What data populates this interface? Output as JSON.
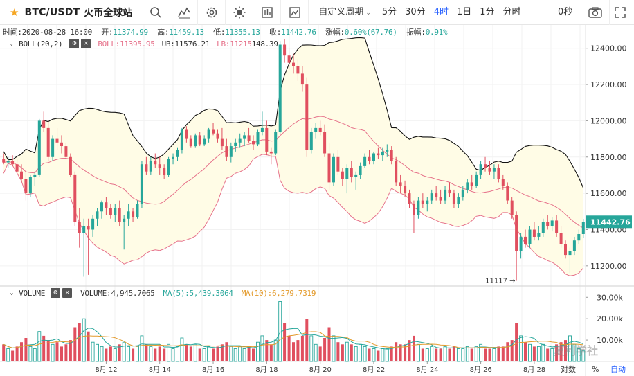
{
  "toolbar": {
    "symbol": "BTC/USDT",
    "exchange": "火币全球站",
    "icons": [
      "search-icon",
      "indicator-icon",
      "settings-icon",
      "theme-icon",
      "template-icon",
      "compare-icon"
    ],
    "custom_period": "自定义周期",
    "periods": [
      {
        "label": "5分",
        "active": false
      },
      {
        "label": "30分",
        "active": false
      },
      {
        "label": "4时",
        "active": true
      },
      {
        "label": "1日",
        "active": false
      },
      {
        "label": "1分",
        "active": false
      },
      {
        "label": "分时",
        "active": false
      }
    ],
    "countdown": "0秒"
  },
  "ohlc": {
    "time_label": "时间:",
    "time": "2020-08-28 16:00",
    "open_label": "开:",
    "open": "11374.99",
    "high_label": "高:",
    "high": "11459.13",
    "low_label": "低:",
    "low": "11355.13",
    "close_label": "收:",
    "close": "11442.76",
    "change_label": "涨幅:",
    "change": "0.60%(67.76)",
    "amp_label": "振幅:",
    "amp": "0.91%"
  },
  "boll": {
    "name": "BOLL(20,2)",
    "mid_label": "BOLL:11395.95",
    "ub_label": "UB:11576.21",
    "lb_label": "LB:11215",
    "lb_overlap": "148.39"
  },
  "volume": {
    "name": "VOLUME",
    "vol_label": "VOLUME:4,945.7065",
    "ma5_label": "MA(5):5,439.3064",
    "ma10_label": "MA(10):6,279.7319"
  },
  "price_axis": {
    "ticks": [
      "12400.00",
      "12200.00",
      "12000.00",
      "11800.00",
      "11600.00",
      "11400.00",
      "11200.00"
    ],
    "current": "11442.76",
    "min_annotation": "11117"
  },
  "volume_axis": {
    "ticks": [
      "30.00k",
      "20.00k",
      "10.00k"
    ]
  },
  "time_axis": {
    "ticks": [
      "8月 12",
      "8月 14",
      "8月 16",
      "8月 18",
      "8月 20",
      "8月 22",
      "8月 24",
      "8月 26",
      "8月 28"
    ]
  },
  "bottom": {
    "percent": "%",
    "log": "对数",
    "auto": "自动"
  },
  "watermark": "复利学社",
  "colors": {
    "up": "#26a69a",
    "down": "#e04f5f",
    "ub": "#111111",
    "mid": "#e6718a",
    "band_fill": "#fffce6",
    "active": "#2962ff"
  },
  "chart_data": {
    "type": "candlestick",
    "interval": "4h",
    "price_range": [
      11100,
      12460
    ],
    "volume_range": [
      0,
      33000
    ],
    "candles": [
      {
        "o": 11790,
        "h": 11820,
        "l": 11760,
        "c": 11770,
        "v": 8000
      },
      {
        "o": 11770,
        "h": 11800,
        "l": 11740,
        "c": 11780,
        "v": 6000
      },
      {
        "o": 11780,
        "h": 11810,
        "l": 11750,
        "c": 11760,
        "v": 5000
      },
      {
        "o": 11760,
        "h": 11790,
        "l": 11700,
        "c": 11720,
        "v": 7000
      },
      {
        "o": 11720,
        "h": 11760,
        "l": 11660,
        "c": 11680,
        "v": 9000
      },
      {
        "o": 11680,
        "h": 11720,
        "l": 11560,
        "c": 11600,
        "v": 11000
      },
      {
        "o": 11600,
        "h": 11700,
        "l": 11580,
        "c": 11690,
        "v": 7000
      },
      {
        "o": 11690,
        "h": 11720,
        "l": 11640,
        "c": 11700,
        "v": 6000
      },
      {
        "o": 11700,
        "h": 12010,
        "l": 11690,
        "c": 12000,
        "v": 14000
      },
      {
        "o": 12000,
        "h": 12050,
        "l": 11940,
        "c": 11960,
        "v": 12000
      },
      {
        "o": 11960,
        "h": 12000,
        "l": 11780,
        "c": 11800,
        "v": 10000
      },
      {
        "o": 11800,
        "h": 11920,
        "l": 11780,
        "c": 11900,
        "v": 8000
      },
      {
        "o": 11900,
        "h": 11960,
        "l": 11840,
        "c": 11880,
        "v": 9000
      },
      {
        "o": 11880,
        "h": 11920,
        "l": 11820,
        "c": 11860,
        "v": 7000
      },
      {
        "o": 11860,
        "h": 11880,
        "l": 11790,
        "c": 11800,
        "v": 8000
      },
      {
        "o": 11800,
        "h": 11820,
        "l": 11690,
        "c": 11700,
        "v": 10000
      },
      {
        "o": 11700,
        "h": 11720,
        "l": 11420,
        "c": 11440,
        "v": 16000
      },
      {
        "o": 11440,
        "h": 11520,
        "l": 11300,
        "c": 11380,
        "v": 18000
      },
      {
        "o": 11380,
        "h": 11460,
        "l": 11140,
        "c": 11420,
        "v": 20000
      },
      {
        "o": 11420,
        "h": 11460,
        "l": 11150,
        "c": 11400,
        "v": 14000
      },
      {
        "o": 11400,
        "h": 11480,
        "l": 11360,
        "c": 11460,
        "v": 9000
      },
      {
        "o": 11460,
        "h": 11520,
        "l": 11420,
        "c": 11500,
        "v": 8000
      },
      {
        "o": 11500,
        "h": 11560,
        "l": 11460,
        "c": 11550,
        "v": 7000
      },
      {
        "o": 11550,
        "h": 11580,
        "l": 11480,
        "c": 11520,
        "v": 6000
      },
      {
        "o": 11520,
        "h": 11540,
        "l": 11460,
        "c": 11480,
        "v": 7000
      },
      {
        "o": 11480,
        "h": 11540,
        "l": 11440,
        "c": 11520,
        "v": 6000
      },
      {
        "o": 11520,
        "h": 11560,
        "l": 11420,
        "c": 11440,
        "v": 8000
      },
      {
        "o": 11440,
        "h": 11480,
        "l": 11290,
        "c": 11460,
        "v": 9000
      },
      {
        "o": 11460,
        "h": 11540,
        "l": 11420,
        "c": 11500,
        "v": 7000
      },
      {
        "o": 11500,
        "h": 11520,
        "l": 11440,
        "c": 11470,
        "v": 6000
      },
      {
        "o": 11470,
        "h": 11560,
        "l": 11460,
        "c": 11540,
        "v": 7000
      },
      {
        "o": 11540,
        "h": 11780,
        "l": 11520,
        "c": 11760,
        "v": 12000
      },
      {
        "o": 11760,
        "h": 11800,
        "l": 11700,
        "c": 11720,
        "v": 8000
      },
      {
        "o": 11720,
        "h": 11800,
        "l": 11700,
        "c": 11780,
        "v": 7000
      },
      {
        "o": 11780,
        "h": 11820,
        "l": 11740,
        "c": 11760,
        "v": 6000
      },
      {
        "o": 11760,
        "h": 11800,
        "l": 11700,
        "c": 11740,
        "v": 7000
      },
      {
        "o": 11740,
        "h": 11760,
        "l": 11680,
        "c": 11700,
        "v": 6000
      },
      {
        "o": 11700,
        "h": 11800,
        "l": 11690,
        "c": 11790,
        "v": 8000
      },
      {
        "o": 11790,
        "h": 11820,
        "l": 11760,
        "c": 11800,
        "v": 6000
      },
      {
        "o": 11800,
        "h": 11850,
        "l": 11780,
        "c": 11840,
        "v": 7000
      },
      {
        "o": 11840,
        "h": 11960,
        "l": 11820,
        "c": 11950,
        "v": 11000
      },
      {
        "o": 11950,
        "h": 11970,
        "l": 11880,
        "c": 11900,
        "v": 8000
      },
      {
        "o": 11900,
        "h": 11920,
        "l": 11850,
        "c": 11860,
        "v": 7000
      },
      {
        "o": 11860,
        "h": 11930,
        "l": 11850,
        "c": 11920,
        "v": 8000
      },
      {
        "o": 11920,
        "h": 11940,
        "l": 11860,
        "c": 11870,
        "v": 6000
      },
      {
        "o": 11870,
        "h": 11920,
        "l": 11860,
        "c": 11900,
        "v": 6000
      },
      {
        "o": 11900,
        "h": 11960,
        "l": 11880,
        "c": 11950,
        "v": 7000
      },
      {
        "o": 11950,
        "h": 11990,
        "l": 11920,
        "c": 11930,
        "v": 6000
      },
      {
        "o": 11930,
        "h": 11950,
        "l": 11880,
        "c": 11900,
        "v": 7000
      },
      {
        "o": 11900,
        "h": 11960,
        "l": 11840,
        "c": 11860,
        "v": 8000
      },
      {
        "o": 11860,
        "h": 11900,
        "l": 11780,
        "c": 11800,
        "v": 9000
      },
      {
        "o": 11800,
        "h": 11880,
        "l": 11770,
        "c": 11860,
        "v": 7000
      },
      {
        "o": 11860,
        "h": 11900,
        "l": 11830,
        "c": 11880,
        "v": 6000
      },
      {
        "o": 11880,
        "h": 11930,
        "l": 11850,
        "c": 11900,
        "v": 7000
      },
      {
        "o": 11900,
        "h": 11940,
        "l": 11860,
        "c": 11920,
        "v": 6000
      },
      {
        "o": 11920,
        "h": 11960,
        "l": 11880,
        "c": 11890,
        "v": 7000
      },
      {
        "o": 11890,
        "h": 11920,
        "l": 11840,
        "c": 11870,
        "v": 6000
      },
      {
        "o": 11870,
        "h": 11950,
        "l": 11860,
        "c": 11940,
        "v": 9000
      },
      {
        "o": 11940,
        "h": 12050,
        "l": 11920,
        "c": 11960,
        "v": 12000
      },
      {
        "o": 11960,
        "h": 12000,
        "l": 11810,
        "c": 11830,
        "v": 10000
      },
      {
        "o": 11830,
        "h": 11850,
        "l": 11760,
        "c": 11820,
        "v": 8000
      },
      {
        "o": 11820,
        "h": 11950,
        "l": 11810,
        "c": 11940,
        "v": 10000
      },
      {
        "o": 11940,
        "h": 12440,
        "l": 11930,
        "c": 12420,
        "v": 28000
      },
      {
        "o": 12420,
        "h": 12450,
        "l": 12320,
        "c": 12360,
        "v": 18000
      },
      {
        "o": 12360,
        "h": 12400,
        "l": 12280,
        "c": 12320,
        "v": 12000
      },
      {
        "o": 12320,
        "h": 12370,
        "l": 12260,
        "c": 12300,
        "v": 9000
      },
      {
        "o": 12300,
        "h": 12340,
        "l": 12220,
        "c": 12260,
        "v": 10000
      },
      {
        "o": 12260,
        "h": 12300,
        "l": 12160,
        "c": 12200,
        "v": 12000
      },
      {
        "o": 12200,
        "h": 12240,
        "l": 11800,
        "c": 11840,
        "v": 20000
      },
      {
        "o": 11840,
        "h": 11960,
        "l": 11820,
        "c": 11940,
        "v": 12000
      },
      {
        "o": 11940,
        "h": 11990,
        "l": 11900,
        "c": 11960,
        "v": 8000
      },
      {
        "o": 11960,
        "h": 12000,
        "l": 11920,
        "c": 11940,
        "v": 7000
      },
      {
        "o": 11940,
        "h": 11980,
        "l": 11800,
        "c": 11820,
        "v": 11000
      },
      {
        "o": 11820,
        "h": 11880,
        "l": 11620,
        "c": 11660,
        "v": 16000
      },
      {
        "o": 11660,
        "h": 11820,
        "l": 11640,
        "c": 11800,
        "v": 12000
      },
      {
        "o": 11800,
        "h": 11840,
        "l": 11700,
        "c": 11720,
        "v": 9000
      },
      {
        "o": 11720,
        "h": 11740,
        "l": 11640,
        "c": 11680,
        "v": 8000
      },
      {
        "o": 11680,
        "h": 11760,
        "l": 11600,
        "c": 11740,
        "v": 9000
      },
      {
        "o": 11740,
        "h": 11780,
        "l": 11660,
        "c": 11690,
        "v": 8000
      },
      {
        "o": 11690,
        "h": 11720,
        "l": 11620,
        "c": 11700,
        "v": 7000
      },
      {
        "o": 11700,
        "h": 11770,
        "l": 11680,
        "c": 11750,
        "v": 8000
      },
      {
        "o": 11750,
        "h": 11820,
        "l": 11740,
        "c": 11800,
        "v": 7000
      },
      {
        "o": 11800,
        "h": 11840,
        "l": 11760,
        "c": 11780,
        "v": 6000
      },
      {
        "o": 11780,
        "h": 11830,
        "l": 11760,
        "c": 11820,
        "v": 6000
      },
      {
        "o": 11820,
        "h": 11850,
        "l": 11790,
        "c": 11810,
        "v": 5000
      },
      {
        "o": 11810,
        "h": 11850,
        "l": 11780,
        "c": 11830,
        "v": 6000
      },
      {
        "o": 11830,
        "h": 11870,
        "l": 11800,
        "c": 11840,
        "v": 6000
      },
      {
        "o": 11840,
        "h": 11860,
        "l": 11760,
        "c": 11780,
        "v": 7000
      },
      {
        "o": 11780,
        "h": 11800,
        "l": 11640,
        "c": 11660,
        "v": 9000
      },
      {
        "o": 11660,
        "h": 11700,
        "l": 11600,
        "c": 11640,
        "v": 8000
      },
      {
        "o": 11640,
        "h": 11670,
        "l": 11580,
        "c": 11600,
        "v": 8000
      },
      {
        "o": 11600,
        "h": 11620,
        "l": 11520,
        "c": 11540,
        "v": 10000
      },
      {
        "o": 11540,
        "h": 11560,
        "l": 11380,
        "c": 11480,
        "v": 12000
      },
      {
        "o": 11480,
        "h": 11580,
        "l": 11460,
        "c": 11560,
        "v": 8000
      },
      {
        "o": 11560,
        "h": 11600,
        "l": 11520,
        "c": 11540,
        "v": 6000
      },
      {
        "o": 11540,
        "h": 11580,
        "l": 11500,
        "c": 11560,
        "v": 6000
      },
      {
        "o": 11560,
        "h": 11620,
        "l": 11540,
        "c": 11600,
        "v": 7000
      },
      {
        "o": 11600,
        "h": 11640,
        "l": 11560,
        "c": 11580,
        "v": 6000
      },
      {
        "o": 11580,
        "h": 11620,
        "l": 11540,
        "c": 11560,
        "v": 6000
      },
      {
        "o": 11560,
        "h": 11640,
        "l": 11540,
        "c": 11620,
        "v": 7000
      },
      {
        "o": 11620,
        "h": 11660,
        "l": 11580,
        "c": 11600,
        "v": 6000
      },
      {
        "o": 11600,
        "h": 11620,
        "l": 11520,
        "c": 11540,
        "v": 7000
      },
      {
        "o": 11540,
        "h": 11600,
        "l": 11520,
        "c": 11580,
        "v": 6000
      },
      {
        "o": 11580,
        "h": 11640,
        "l": 11560,
        "c": 11620,
        "v": 6000
      },
      {
        "o": 11620,
        "h": 11680,
        "l": 11600,
        "c": 11660,
        "v": 7000
      },
      {
        "o": 11660,
        "h": 11700,
        "l": 11620,
        "c": 11640,
        "v": 6000
      },
      {
        "o": 11640,
        "h": 11720,
        "l": 11630,
        "c": 11700,
        "v": 7000
      },
      {
        "o": 11700,
        "h": 11780,
        "l": 11680,
        "c": 11760,
        "v": 8000
      },
      {
        "o": 11760,
        "h": 11800,
        "l": 11720,
        "c": 11740,
        "v": 6000
      },
      {
        "o": 11740,
        "h": 11780,
        "l": 11700,
        "c": 11720,
        "v": 6000
      },
      {
        "o": 11720,
        "h": 11760,
        "l": 11680,
        "c": 11740,
        "v": 6000
      },
      {
        "o": 11740,
        "h": 11760,
        "l": 11660,
        "c": 11680,
        "v": 7000
      },
      {
        "o": 11680,
        "h": 11700,
        "l": 11620,
        "c": 11640,
        "v": 7000
      },
      {
        "o": 11640,
        "h": 11660,
        "l": 11540,
        "c": 11560,
        "v": 9000
      },
      {
        "o": 11560,
        "h": 11580,
        "l": 11460,
        "c": 11480,
        "v": 10000
      },
      {
        "o": 11480,
        "h": 11500,
        "l": 11117,
        "c": 11280,
        "v": 18000
      },
      {
        "o": 11280,
        "h": 11380,
        "l": 11240,
        "c": 11360,
        "v": 12000
      },
      {
        "o": 11360,
        "h": 11400,
        "l": 11300,
        "c": 11320,
        "v": 9000
      },
      {
        "o": 11320,
        "h": 11420,
        "l": 11300,
        "c": 11400,
        "v": 8000
      },
      {
        "o": 11400,
        "h": 11440,
        "l": 11340,
        "c": 11360,
        "v": 7000
      },
      {
        "o": 11360,
        "h": 11420,
        "l": 11340,
        "c": 11380,
        "v": 7000
      },
      {
        "o": 11380,
        "h": 11460,
        "l": 11360,
        "c": 11440,
        "v": 8000
      },
      {
        "o": 11440,
        "h": 11480,
        "l": 11400,
        "c": 11420,
        "v": 6000
      },
      {
        "o": 11420,
        "h": 11470,
        "l": 11390,
        "c": 11450,
        "v": 6000
      },
      {
        "o": 11450,
        "h": 11480,
        "l": 11360,
        "c": 11380,
        "v": 8000
      },
      {
        "o": 11380,
        "h": 11420,
        "l": 11300,
        "c": 11320,
        "v": 9000
      },
      {
        "o": 11320,
        "h": 11340,
        "l": 11240,
        "c": 11260,
        "v": 10000
      },
      {
        "o": 11260,
        "h": 11300,
        "l": 11160,
        "c": 11280,
        "v": 12000
      },
      {
        "o": 11280,
        "h": 11360,
        "l": 11260,
        "c": 11340,
        "v": 8000
      },
      {
        "o": 11340,
        "h": 11400,
        "l": 11320,
        "c": 11375,
        "v": 6000
      },
      {
        "o": 11375,
        "h": 11459,
        "l": 11355,
        "c": 11442.76,
        "v": 4946
      }
    ]
  }
}
